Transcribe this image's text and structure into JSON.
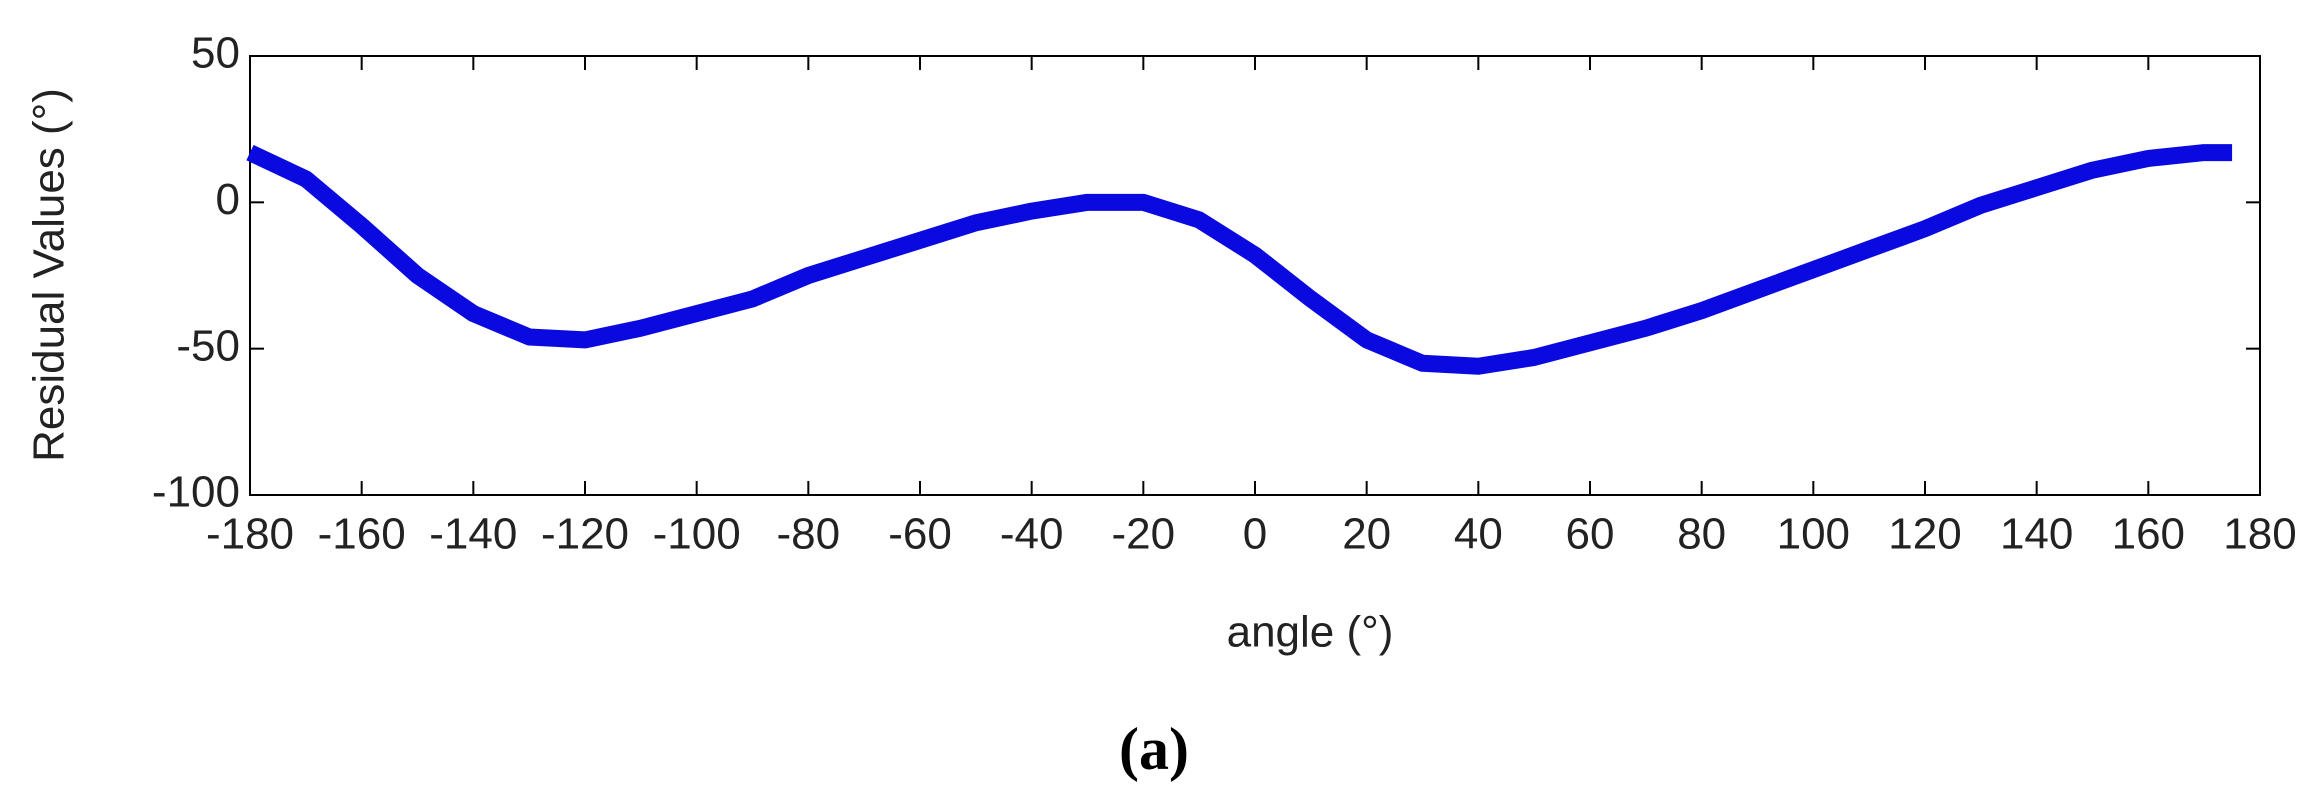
{
  "chart_data": {
    "type": "line",
    "x_label": "angle (°)",
    "y_label": "Residual Values (°)",
    "caption": "(a)",
    "x": [
      -180,
      -170,
      -160,
      -150,
      -140,
      -130,
      -120,
      -110,
      -100,
      -90,
      -80,
      -70,
      -60,
      -50,
      -40,
      -30,
      -20,
      -10,
      0,
      10,
      20,
      30,
      40,
      50,
      60,
      70,
      80,
      90,
      100,
      110,
      120,
      130,
      140,
      150,
      160,
      170,
      175
    ],
    "series": [
      {
        "name": "Residual",
        "color": "#0a0ae0",
        "values": [
          17,
          8,
          -8,
          -25,
          -38,
          -46,
          -47,
          -43,
          -38,
          -33,
          -25,
          -19,
          -13,
          -7,
          -3,
          0,
          0,
          -6,
          -18,
          -33,
          -47,
          -55,
          -56,
          -53,
          -48,
          -43,
          -37,
          -30,
          -23,
          -16,
          -9,
          -1,
          5,
          11,
          15,
          17,
          17
        ]
      }
    ],
    "xlim": [
      -180,
      180
    ],
    "xticks": [
      -180,
      -160,
      -140,
      -120,
      -100,
      -80,
      -60,
      -40,
      -20,
      0,
      20,
      40,
      60,
      80,
      100,
      120,
      140,
      160,
      180
    ],
    "ylim": [
      -100,
      50
    ],
    "yticks": [
      -100,
      -50,
      0,
      50
    ]
  }
}
